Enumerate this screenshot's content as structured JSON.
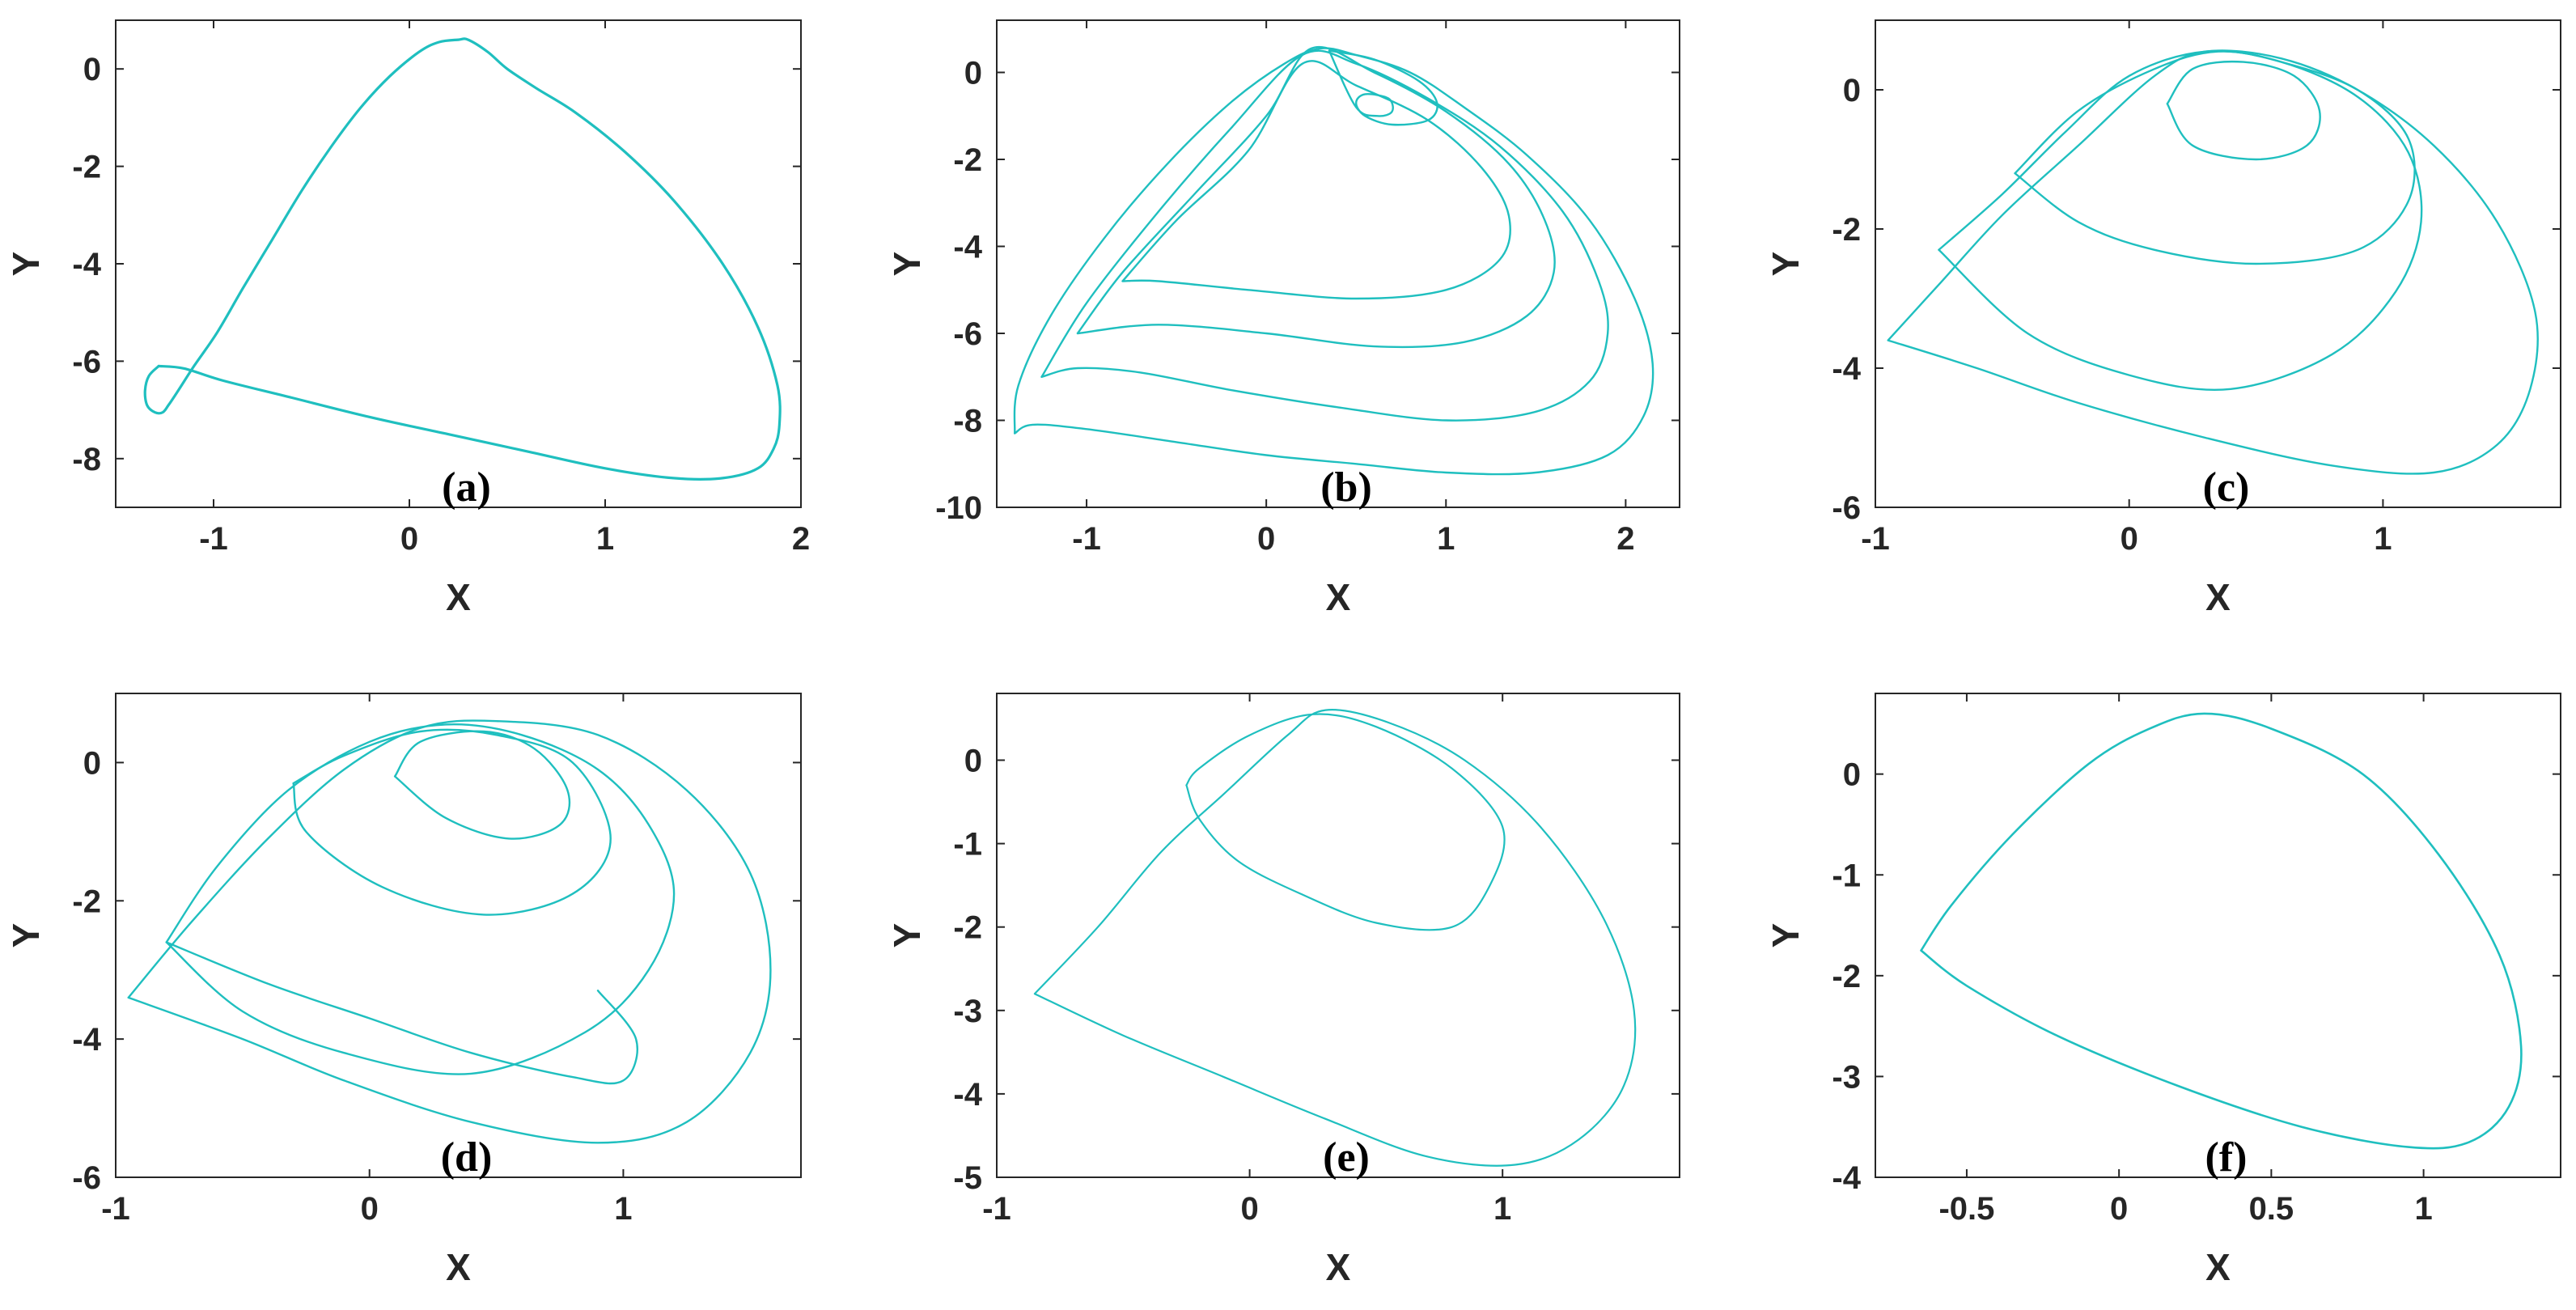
{
  "chart_data": [
    {
      "type": "line",
      "panel": "(a)",
      "xlabel": "X",
      "ylabel": "Y",
      "xlim": [
        -1.5,
        2
      ],
      "ylim": [
        -9,
        1
      ],
      "xticks": [
        -1,
        0,
        1,
        2
      ],
      "yticks": [
        0,
        -2,
        -4,
        -6,
        -8
      ],
      "grid": false,
      "color": "#1fbfbf",
      "series": [
        {
          "x": [
            -1.28,
            -1.33,
            -1.35,
            -1.34,
            -1.3,
            -1.26,
            -1.23,
            -1.18,
            -1.1,
            -0.98,
            -0.85,
            -0.7,
            -0.55,
            -0.4,
            -0.25,
            -0.1,
            0.05,
            0.15,
            0.25,
            0.3,
            0.4,
            0.5,
            0.65,
            0.85,
            1.1,
            1.35,
            1.6,
            1.78,
            1.88,
            1.89,
            1.86,
            1.78,
            1.6,
            1.35,
            1.0,
            0.6,
            0.2,
            -0.2,
            -0.6,
            -0.95,
            -1.15,
            -1.28
          ],
          "y": [
            -6.1,
            -6.3,
            -6.6,
            -6.9,
            -7.05,
            -7.05,
            -6.9,
            -6.6,
            -6.1,
            -5.4,
            -4.5,
            -3.5,
            -2.5,
            -1.6,
            -0.8,
            -0.15,
            0.35,
            0.55,
            0.6,
            0.6,
            0.35,
            0.0,
            -0.4,
            -0.9,
            -1.7,
            -2.7,
            -4.0,
            -5.3,
            -6.5,
            -7.3,
            -7.8,
            -8.2,
            -8.4,
            -8.4,
            -8.2,
            -7.85,
            -7.5,
            -7.15,
            -6.75,
            -6.4,
            -6.15,
            -6.1
          ]
        }
      ]
    },
    {
      "type": "line",
      "panel": "(b)",
      "xlabel": "X",
      "ylabel": "Y",
      "xlim": [
        -1.5,
        2.3
      ],
      "ylim": [
        -10,
        1.2
      ],
      "xticks": [
        -1,
        0,
        1,
        2
      ],
      "yticks": [
        0,
        -2,
        -4,
        -6,
        -8,
        -10
      ],
      "grid": false,
      "color": "#1fbfbf",
      "series": [
        {
          "x": [
            -1.4,
            -1.38,
            -1.2,
            -0.9,
            -0.55,
            -0.2,
            0.1,
            0.3,
            0.5,
            0.8,
            1.1,
            1.45,
            1.8,
            2.05,
            2.15,
            2.1,
            1.9,
            1.5,
            1.0,
            0.5,
            0.0,
            -0.5,
            -1.0,
            -1.3,
            -1.4
          ],
          "y": [
            -8.3,
            -7.2,
            -5.6,
            -3.8,
            -2.1,
            -0.7,
            0.2,
            0.55,
            0.4,
            0.0,
            -0.8,
            -1.9,
            -3.4,
            -5.2,
            -6.7,
            -7.9,
            -8.8,
            -9.2,
            -9.2,
            -9.0,
            -8.8,
            -8.5,
            -8.2,
            -8.1,
            -8.3
          ]
        },
        {
          "x": [
            -1.25,
            -1.0,
            -0.6,
            -0.2,
            0.2,
            0.5,
            0.9,
            1.3,
            1.65,
            1.85,
            1.9,
            1.8,
            1.5,
            1.0,
            0.4,
            -0.2,
            -0.7,
            -1.05,
            -1.25
          ],
          "y": [
            -7.0,
            -5.3,
            -3.2,
            -1.3,
            0.4,
            0.2,
            -0.6,
            -1.7,
            -3.2,
            -4.8,
            -6.0,
            -7.1,
            -7.8,
            -8.0,
            -7.7,
            -7.3,
            -6.9,
            -6.8,
            -7.0
          ]
        },
        {
          "x": [
            -1.05,
            -0.8,
            -0.4,
            0.0,
            0.25,
            0.6,
            1.0,
            1.35,
            1.55,
            1.6,
            1.45,
            1.1,
            0.6,
            0.0,
            -0.6,
            -1.05
          ],
          "y": [
            -6.0,
            -4.6,
            -2.8,
            -1.0,
            0.55,
            0.0,
            -0.9,
            -2.1,
            -3.4,
            -4.6,
            -5.6,
            -6.2,
            -6.3,
            -6.0,
            -5.8,
            -6.0
          ]
        },
        {
          "x": [
            -0.8,
            -0.5,
            -0.1,
            0.2,
            0.5,
            0.9,
            1.2,
            1.35,
            1.3,
            1.0,
            0.5,
            -0.1,
            -0.6,
            -0.8
          ],
          "y": [
            -4.8,
            -3.4,
            -1.8,
            0.2,
            -0.3,
            -1.1,
            -2.2,
            -3.3,
            -4.3,
            -5.0,
            -5.2,
            -5.0,
            -4.8,
            -4.8
          ]
        },
        {
          "x": [
            0.35,
            0.6,
            0.85,
            0.95,
            0.9,
            0.7,
            0.55,
            0.5,
            0.55,
            0.68,
            0.7,
            0.62,
            0.5,
            0.35
          ],
          "y": [
            0.5,
            0.3,
            -0.2,
            -0.7,
            -1.1,
            -1.2,
            -1.0,
            -0.7,
            -0.5,
            -0.6,
            -0.9,
            -1.0,
            -0.8,
            0.5
          ]
        }
      ]
    },
    {
      "type": "line",
      "panel": "(c)",
      "xlabel": "X",
      "ylabel": "Y",
      "xlim": [
        -1,
        1.7
      ],
      "ylim": [
        -6,
        1
      ],
      "xticks": [
        -1,
        0,
        1
      ],
      "yticks": [
        0,
        -2,
        -4,
        -6
      ],
      "grid": false,
      "color": "#1fbfbf",
      "series": [
        {
          "x": [
            -0.95,
            -0.75,
            -0.5,
            -0.2,
            0.1,
            0.3,
            0.6,
            0.9,
            1.2,
            1.45,
            1.6,
            1.58,
            1.45,
            1.2,
            0.8,
            0.3,
            -0.2,
            -0.6,
            -0.95
          ],
          "y": [
            -3.6,
            -2.8,
            -1.8,
            -0.8,
            0.2,
            0.55,
            0.45,
            0.0,
            -0.8,
            -1.9,
            -3.2,
            -4.3,
            -5.1,
            -5.5,
            -5.4,
            -5.0,
            -4.5,
            -4.0,
            -3.6
          ]
        },
        {
          "x": [
            -0.75,
            -0.5,
            -0.25,
            0.0,
            0.3,
            0.6,
            0.9,
            1.1,
            1.15,
            1.05,
            0.8,
            0.4,
            0.0,
            -0.4,
            -0.75
          ],
          "y": [
            -2.3,
            -1.5,
            -0.6,
            0.2,
            0.55,
            0.4,
            -0.1,
            -0.9,
            -1.9,
            -2.9,
            -3.8,
            -4.3,
            -4.1,
            -3.5,
            -2.3
          ]
        },
        {
          "x": [
            -0.45,
            -0.2,
            0.1,
            0.35,
            0.6,
            0.9,
            1.1,
            1.1,
            0.9,
            0.5,
            0.1,
            -0.2,
            -0.45
          ],
          "y": [
            -1.2,
            -0.3,
            0.3,
            0.55,
            0.4,
            0.0,
            -0.7,
            -1.6,
            -2.3,
            -2.5,
            -2.3,
            -1.9,
            -1.2
          ]
        },
        {
          "x": [
            0.15,
            0.25,
            0.45,
            0.65,
            0.75,
            0.7,
            0.5,
            0.25,
            0.15
          ],
          "y": [
            -0.2,
            0.3,
            0.4,
            0.2,
            -0.3,
            -0.8,
            -1.0,
            -0.8,
            -0.2
          ]
        }
      ]
    },
    {
      "type": "line",
      "panel": "(d)",
      "xlabel": "X",
      "ylabel": "Y",
      "xlim": [
        -1,
        1.7
      ],
      "ylim": [
        -6,
        1
      ],
      "xticks": [
        -1,
        0,
        1
      ],
      "yticks": [
        0,
        -2,
        -4,
        -6
      ],
      "grid": false,
      "color": "#1fbfbf",
      "series": [
        {
          "x": [
            -0.8,
            -0.6,
            -0.32,
            0.0,
            0.3,
            0.6,
            0.9,
            1.1,
            1.2,
            1.1,
            0.85,
            0.4,
            -0.1,
            -0.5,
            -0.8
          ],
          "y": [
            -2.6,
            -1.5,
            -0.4,
            0.3,
            0.55,
            0.4,
            -0.1,
            -0.9,
            -1.9,
            -3.0,
            -3.9,
            -4.5,
            -4.2,
            -3.6,
            -2.6
          ]
        },
        {
          "x": [
            -0.8,
            -0.4,
            0.0,
            0.4,
            0.8,
            1.0,
            1.05,
            0.9
          ],
          "y": [
            -2.6,
            -3.2,
            -3.7,
            -4.2,
            -4.55,
            -4.6,
            -4.0,
            -3.3
          ]
        },
        {
          "x": [
            -0.3,
            -0.1,
            0.2,
            0.5,
            0.8,
            0.95,
            0.8,
            0.45,
            0.05,
            -0.25,
            -0.3
          ],
          "y": [
            -0.3,
            0.1,
            0.45,
            0.4,
            0.0,
            -1.1,
            -1.9,
            -2.2,
            -1.8,
            -1.0,
            -0.3
          ]
        },
        {
          "x": [
            0.1,
            0.2,
            0.45,
            0.65,
            0.78,
            0.75,
            0.55,
            0.3,
            0.1
          ],
          "y": [
            -0.2,
            0.3,
            0.45,
            0.2,
            -0.4,
            -0.9,
            -1.1,
            -0.8,
            -0.2
          ]
        },
        {
          "x": [
            -0.95,
            -0.7,
            -0.4,
            -0.1,
            0.2,
            0.5,
            0.9,
            1.25,
            1.5,
            1.58,
            1.5,
            1.25,
            0.9,
            0.4,
            -0.1,
            -0.5,
            -0.95
          ],
          "y": [
            -3.4,
            -2.3,
            -1.1,
            -0.1,
            0.5,
            0.6,
            0.4,
            -0.4,
            -1.6,
            -3.0,
            -4.2,
            -5.2,
            -5.5,
            -5.2,
            -4.6,
            -4.0,
            -3.4
          ]
        }
      ]
    },
    {
      "type": "line",
      "panel": "(e)",
      "xlabel": "X",
      "ylabel": "Y",
      "xlim": [
        -1,
        1.7
      ],
      "ylim": [
        -5,
        0.8
      ],
      "xticks": [
        -1,
        0,
        1
      ],
      "yticks": [
        0,
        -1,
        -2,
        -3,
        -4,
        -5
      ],
      "grid": false,
      "color": "#1fbfbf",
      "series": [
        {
          "x": [
            -0.85,
            -0.6,
            -0.35,
            -0.1,
            0.15,
            0.3,
            0.55,
            0.85,
            1.15,
            1.4,
            1.52,
            1.48,
            1.3,
            1.05,
            0.7,
            0.3,
            -0.1,
            -0.5,
            -0.85
          ],
          "y": [
            -2.8,
            -2.0,
            -1.1,
            -0.4,
            0.3,
            0.6,
            0.45,
            0.0,
            -0.8,
            -1.9,
            -3.0,
            -3.9,
            -4.55,
            -4.85,
            -4.75,
            -4.3,
            -3.8,
            -3.3,
            -2.8
          ]
        },
        {
          "x": [
            -0.25,
            -0.2,
            0.0,
            0.25,
            0.5,
            0.8,
            1.0,
            0.95,
            0.8,
            0.5,
            0.2,
            -0.05,
            -0.2,
            -0.25
          ],
          "y": [
            -0.3,
            -0.1,
            0.3,
            0.55,
            0.4,
            -0.1,
            -0.8,
            -1.5,
            -2.0,
            -1.95,
            -1.6,
            -1.2,
            -0.7,
            -0.3
          ]
        }
      ]
    },
    {
      "type": "line",
      "panel": "(f)",
      "xlabel": "X",
      "ylabel": "Y",
      "xlim": [
        -0.8,
        1.45
      ],
      "ylim": [
        -4,
        0.8
      ],
      "xticks": [
        -0.5,
        0,
        0.5,
        1
      ],
      "yticks": [
        0,
        -1,
        -2,
        -3,
        -4
      ],
      "grid": false,
      "color": "#1fbfbf",
      "series": [
        {
          "x": [
            -0.65,
            -0.55,
            -0.35,
            -0.1,
            0.1,
            0.28,
            0.5,
            0.8,
            1.05,
            1.25,
            1.32,
            1.28,
            1.15,
            0.95,
            0.6,
            0.2,
            -0.2,
            -0.5,
            -0.65
          ],
          "y": [
            -1.75,
            -1.3,
            -0.6,
            0.1,
            0.45,
            0.6,
            0.45,
            0.0,
            -0.8,
            -1.8,
            -2.7,
            -3.3,
            -3.65,
            -3.7,
            -3.5,
            -3.1,
            -2.6,
            -2.1,
            -1.75
          ]
        }
      ]
    }
  ]
}
